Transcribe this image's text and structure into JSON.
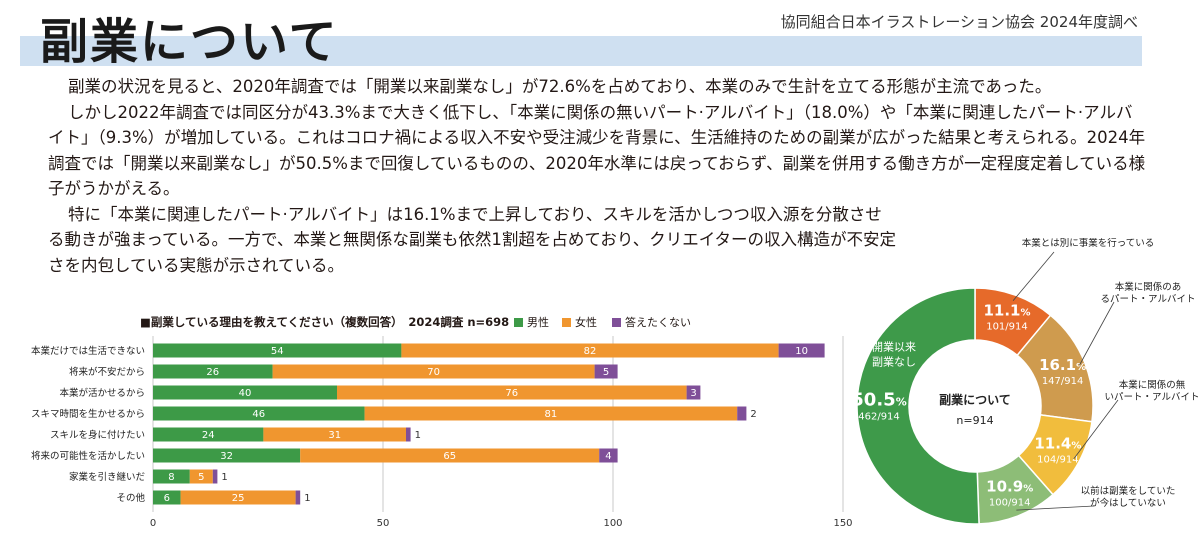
{
  "header": {
    "title": "副業について",
    "source": "協同組合日本イラストレーション協会 2024年度調べ"
  },
  "body": {
    "p1": "副業の状況を見ると、2020年調査では「開業以来副業なし」が72.6%を占めており、本業のみで生計を立てる形態が主流であった。",
    "p2": "しかし2022年調査では同区分が43.3%まで大きく低下し、「本業に関係の無いパート·アルバイト」（18.0%）や「本業に関連したパート·アルバイト」（9.3%）が増加している。これはコロナ禍による収入不安や受注減少を背景に、生活維持のための副業が広がった結果と考えられる。2024年調査では「開業以来副業なし」が50.5%まで回復しているものの、2020年水準には戻っておらず、副業を併用する働き方が一定程度定着している様子がうかがえる。",
    "p3": "特に「本業に関連したパート·アルバイト」は16.1%まで上昇しており、スキルを活かしつつ収入源を分散させる動きが強まっている。一方で、本業と無関係な副業も依然1割超を占めており、クリエイターの収入構造が不安定さを内包している実態が示されている。"
  },
  "bar_chart": {
    "title": "■副業している理由を教えてください（複数回答）　2024調査 n=698",
    "legend": [
      "男性",
      "女性",
      "答えたくない"
    ]
  },
  "chart_data": [
    {
      "type": "bar",
      "orientation": "horizontal",
      "stacked": true,
      "title": "■副業している理由を教えてください（複数回答）　2024調査 n=698",
      "categories": [
        "本業だけでは生活できない",
        "将来が不安だから",
        "本業が活かせるから",
        "スキマ時間を生かせるから",
        "スキルを身に付けたい",
        "将来の可能性を活かしたい",
        "家業を引き継いだ",
        "その他"
      ],
      "series": [
        {
          "name": "男性",
          "color": "#3d9a47",
          "values": [
            54,
            26,
            40,
            46,
            24,
            32,
            8,
            6
          ]
        },
        {
          "name": "女性",
          "color": "#f0962f",
          "values": [
            82,
            70,
            76,
            81,
            31,
            65,
            5,
            25
          ]
        },
        {
          "name": "答えたくない",
          "color": "#7f4f98",
          "values": [
            10,
            5,
            3,
            2,
            1,
            4,
            1,
            1
          ]
        }
      ],
      "xlim": [
        0,
        150
      ],
      "xticks": [
        0,
        50,
        100,
        150
      ],
      "grid": true,
      "legend": "top"
    },
    {
      "type": "pie",
      "donut": true,
      "center_title": "副業について",
      "center_n": "n=914",
      "slices": [
        {
          "label": "本業とは別に事業を行っている",
          "percent": "11.1",
          "count": "101/914",
          "value": 101,
          "color": "#e66a2a"
        },
        {
          "label": "本業に関係のあるパート・アルバイト",
          "percent": "16.1",
          "count": "147/914",
          "value": 147,
          "color": "#cf9b4e"
        },
        {
          "label": "本業に関係の無いパート・アルバイト",
          "percent": "11.4",
          "count": "104/914",
          "value": 104,
          "color": "#f1bd3d"
        },
        {
          "label": "以前は副業をしていたが今はしていない",
          "percent": "10.9",
          "count": "100/914",
          "value": 100,
          "color": "#8dbd77"
        },
        {
          "label": "開業以来副業なし",
          "percent": "50.5",
          "count": "462/914",
          "value": 462,
          "color": "#3e9a4a"
        }
      ],
      "pct_unit": "%"
    }
  ]
}
